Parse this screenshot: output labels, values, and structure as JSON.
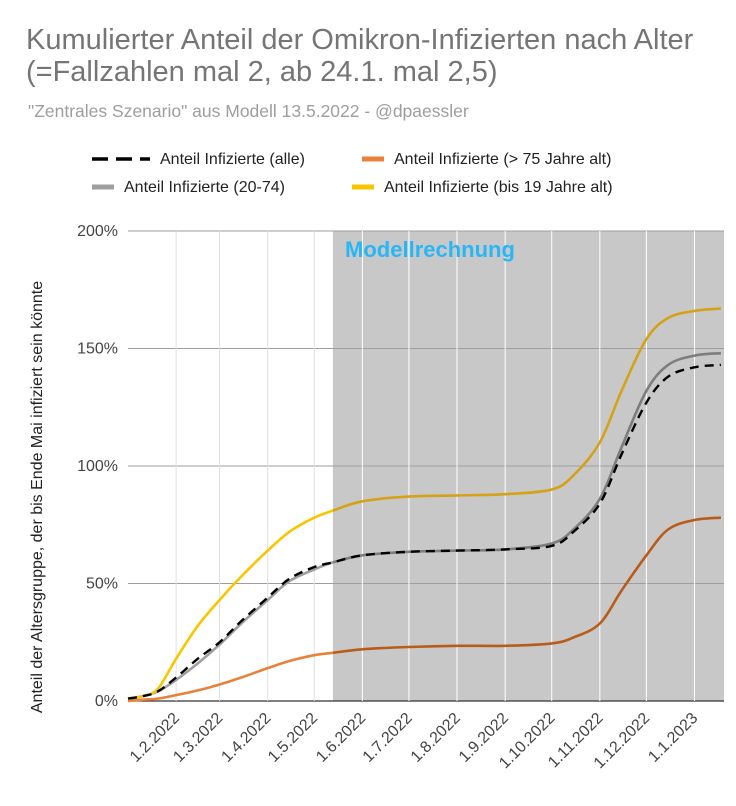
{
  "title": "Kumulierter Anteil der Omikron-Infizierten nach Alter (=Fallzahlen mal 2, ab 24.1. mal 2,5)",
  "subtitle": "\"Zentrales Szenario\" aus Modell 13.5.2022 - @dpaessler",
  "chart_data": {
    "type": "line",
    "ylabel": "Anteil der Altersgruppe, der bis Ende Mai infiziert sein könnte",
    "ylim": [
      0,
      200
    ],
    "yticks": [
      "0%",
      "50%",
      "100%",
      "150%",
      "200%"
    ],
    "xticks": [
      "1.2.2022",
      "1.3.2022",
      "1.4.2022",
      "1.5.2022",
      "1.6.2022",
      "1.7.2022",
      "1.8.2022",
      "1.9.2022",
      "1.10.2022",
      "1.11.2022",
      "1.12.2022",
      "1.1.2023"
    ],
    "x_range": [
      "2022-01-01",
      "2023-01-20"
    ],
    "legend_position": "top",
    "model_region": {
      "label": "Modellrechnung",
      "start": "2022-05-13",
      "fill": "#c8c8c8"
    },
    "grid": true,
    "series": [
      {
        "name": "Anteil Infizierte (alle)",
        "color": "#000000",
        "style": "dashed",
        "x": [
          "2022-01-01",
          "2022-01-10",
          "2022-01-20",
          "2022-02-01",
          "2022-02-15",
          "2022-03-01",
          "2022-03-15",
          "2022-04-01",
          "2022-04-15",
          "2022-05-01",
          "2022-05-13",
          "2022-06-01",
          "2022-07-01",
          "2022-08-01",
          "2022-09-01",
          "2022-10-01",
          "2022-10-15",
          "2022-11-01",
          "2022-11-15",
          "2022-12-01",
          "2022-12-15",
          "2023-01-01",
          "2023-01-18"
        ],
        "y": [
          1,
          2,
          4,
          10,
          18,
          25,
          34,
          44,
          52,
          57,
          59,
          62,
          63.5,
          64,
          64.5,
          66,
          72,
          84,
          105,
          127,
          138,
          142,
          143
        ]
      },
      {
        "name": "Anteil Infizierte (> 75 Jahre alt)",
        "color": "#e8823a",
        "colorModel": "#b85c1a",
        "style": "solid",
        "x": [
          "2022-01-01",
          "2022-01-10",
          "2022-01-20",
          "2022-02-01",
          "2022-02-15",
          "2022-03-01",
          "2022-03-15",
          "2022-04-01",
          "2022-04-15",
          "2022-05-01",
          "2022-05-13",
          "2022-06-01",
          "2022-07-01",
          "2022-08-01",
          "2022-09-01",
          "2022-10-01",
          "2022-10-15",
          "2022-11-01",
          "2022-11-15",
          "2022-12-01",
          "2022-12-15",
          "2023-01-01",
          "2023-01-18"
        ],
        "y": [
          0,
          0.5,
          1,
          2.5,
          4.5,
          7,
          10,
          14,
          17,
          19.5,
          20.5,
          22,
          23,
          23.5,
          23.5,
          24.5,
          27,
          33,
          47,
          62,
          73,
          77,
          78
        ]
      },
      {
        "name": "Anteil Infizierte (20-74)",
        "color": "#9e9e9e",
        "colorModel": "#7d7d7d",
        "style": "solid",
        "x": [
          "2022-01-01",
          "2022-01-10",
          "2022-01-20",
          "2022-02-01",
          "2022-02-15",
          "2022-03-01",
          "2022-03-15",
          "2022-04-01",
          "2022-04-15",
          "2022-05-01",
          "2022-05-13",
          "2022-06-01",
          "2022-07-01",
          "2022-08-01",
          "2022-09-01",
          "2022-10-01",
          "2022-10-15",
          "2022-11-01",
          "2022-11-15",
          "2022-12-01",
          "2022-12-15",
          "2023-01-01",
          "2023-01-18"
        ],
        "y": [
          1,
          2,
          4,
          9,
          16,
          24,
          33,
          43,
          51,
          56,
          59,
          62,
          63.5,
          64,
          64.5,
          67,
          73,
          86,
          108,
          132,
          143,
          147,
          148
        ]
      },
      {
        "name": "Anteil Infizierte (bis 19 Jahre alt)",
        "color": "#f9c500",
        "colorModel": "#d4a117",
        "style": "solid",
        "x": [
          "2022-01-01",
          "2022-01-10",
          "2022-01-20",
          "2022-02-01",
          "2022-02-15",
          "2022-03-01",
          "2022-03-15",
          "2022-04-01",
          "2022-04-15",
          "2022-05-01",
          "2022-05-13",
          "2022-06-01",
          "2022-07-01",
          "2022-08-01",
          "2022-09-01",
          "2022-10-01",
          "2022-10-15",
          "2022-11-01",
          "2022-11-15",
          "2022-12-01",
          "2022-12-15",
          "2023-01-01",
          "2023-01-18"
        ],
        "y": [
          1,
          2,
          5,
          18,
          32,
          43,
          53,
          64,
          72,
          78,
          81,
          85,
          87,
          87.5,
          88,
          90,
          96,
          110,
          132,
          154,
          163,
          166,
          167
        ]
      }
    ]
  }
}
